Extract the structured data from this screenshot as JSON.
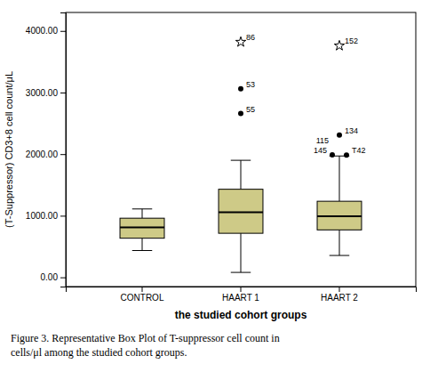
{
  "chart_data": {
    "type": "box",
    "categories": [
      "CONTROL",
      "HAART 1",
      "HAART 2"
    ],
    "boxes": [
      {
        "q1": 635,
        "median": 810,
        "q3": 960,
        "whisker_low": 435,
        "whisker_high": 1110,
        "outliers": [],
        "outlier_labels": [],
        "far_outliers": [],
        "far_outlier_labels": []
      },
      {
        "q1": 715,
        "median": 1055,
        "q3": 1430,
        "whisker_low": 80,
        "whisker_high": 1900,
        "outliers": [
          2660,
          3060
        ],
        "outlier_labels": [
          "55",
          "53"
        ],
        "far_outliers": [
          3820
        ],
        "far_outlier_labels": [
          "86"
        ]
      },
      {
        "q1": 770,
        "median": 990,
        "q3": 1235,
        "whisker_low": 355,
        "whisker_high": 1970,
        "outliers": [
          1985,
          1990,
          2310
        ],
        "outlier_labels": [
          "T42",
          "145",
          "134"
        ],
        "far_outliers": [
          3760
        ],
        "far_outlier_labels": [
          "152"
        ]
      }
    ],
    "color": "#ceca87",
    "xlabel": "the studied cohort groups",
    "ylabel": "(T-Suppressor) CD3+8 cell count/μL",
    "ylim": [
      -150,
      4300
    ],
    "yticks": [
      {
        "value": 0,
        "label": "0.00"
      },
      {
        "value": 1000,
        "label": "1000.00"
      },
      {
        "value": 2000,
        "label": "2000.00"
      },
      {
        "value": 3000,
        "label": "3000.00"
      },
      {
        "value": 4000,
        "label": "4000.00"
      }
    ],
    "annotations": [
      {
        "text": "115",
        "category": "HAART 2",
        "y": 1985
      }
    ],
    "caption": [
      "Figure 3.  Representative Box Plot of T-suppressor cell count in",
      "cells/μl among the studied cohort groups."
    ],
    "grid": false
  }
}
